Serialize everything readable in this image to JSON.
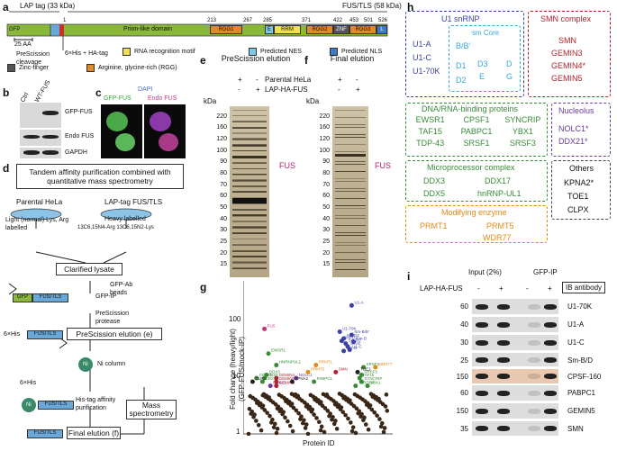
{
  "panel_a": {
    "label": "a",
    "lap_tag": "LAP tag (33 kDa)",
    "fus_tls": "FUS/TLS (58 kDa)",
    "gfp": "GFP",
    "prion": "Prion-like domain",
    "rgg1": "RGG1",
    "rrm": "RRM",
    "rgg2": "RGG2",
    "znf": "ZNF",
    "rgg3": "RGG3",
    "e": "E",
    "l": "L",
    "pos": [
      "1",
      "213",
      "267",
      "285",
      "371",
      "422",
      "453",
      "501",
      "526"
    ],
    "scale": "25 AA",
    "cleavage": "PreScission\ncleavage",
    "his": "6×His + HA-tag",
    "legend": [
      "RNA recognition motif",
      "Predicted NES",
      "Predicted NLS",
      "Zinc-finger",
      "Arginine, glycine-rich (RGG)"
    ]
  },
  "panel_b": {
    "label": "b",
    "cols": [
      "Ctrl",
      "WT-FUS"
    ],
    "rows": [
      "GFP-FUS",
      "Endo FUS",
      "GAPDH"
    ]
  },
  "panel_c": {
    "label": "c",
    "dapi": "DAPI",
    "gfp": "GFP-FUS",
    "endo": "Endo FUS"
  },
  "panel_d": {
    "label": "d",
    "title": "Tandem affinity purification combined with quantitative mass spectrometry",
    "parental": "Parental HeLa",
    "lap": "LAP-tag FUS/TLS",
    "light": "Light (normal) Lys, Arg labelled",
    "heavy": "Heavy labelled",
    "isotopes": "13C6,15N4-Arg 13C6,15N2-Lys",
    "lysate": "Clarified lysate",
    "gfpab": "GFP-Ab beads",
    "gfpip": "GFP-IP",
    "prescission": "PreScission protease",
    "elution_e": "PreScission elution (e)",
    "nicol": "Ni column",
    "his6": "6×His",
    "histag": "His-tag affinity purification",
    "mass": "Mass spectrometry",
    "final": "Final elution (f)",
    "fus_tls": "FUS/TLS",
    "gfp": "GFP",
    "ni": "Ni"
  },
  "panel_e": {
    "label": "e",
    "title": "PreScission elution",
    "parental": "Parental HeLa",
    "lap": "LAP-HA-FUS",
    "kda": "kDa",
    "marks": [
      "220",
      "160",
      "120",
      "100",
      "90",
      "80",
      "70",
      "60",
      "50",
      "40",
      "30",
      "25",
      "20",
      "15"
    ],
    "fus": "FUS",
    "signs": [
      "+",
      "-",
      "-",
      "+"
    ]
  },
  "panel_f": {
    "label": "f",
    "title": "Final elution",
    "kda": "kDa",
    "marks": [
      "220",
      "160",
      "120",
      "100",
      "90",
      "80",
      "70",
      "60",
      "50",
      "40",
      "30",
      "25",
      "20",
      "15"
    ],
    "fus": "FUS",
    "signs": [
      "+",
      "-",
      "-",
      "+"
    ]
  },
  "panel_g": {
    "label": "g",
    "ylabel": "Fold change (heavy/light)\n(GFP-FUS/mock-IP)",
    "xlabel": "Protein ID",
    "ticks": [
      "100",
      "10",
      "1"
    ]
  },
  "chart_data": {
    "type": "scatter",
    "xlabel": "Protein ID",
    "ylabel": "Fold change (heavy/light) (GFP-FUS/mock-IP)",
    "yscale": "log",
    "ylim": [
      1,
      300
    ],
    "labeled_points": [
      {
        "name": "U1-A",
        "x": 52,
        "y": 120
      },
      {
        "name": "U1-70K",
        "x": 46,
        "y": 45
      },
      {
        "name": "Sm-B/B'",
        "x": 52,
        "y": 40
      },
      {
        "name": "Sm-D3",
        "x": 48,
        "y": 35
      },
      {
        "name": "Sm-D1",
        "x": 47,
        "y": 32
      },
      {
        "name": "Sm-D2",
        "x": 49,
        "y": 29
      },
      {
        "name": "Sm-E",
        "x": 50,
        "y": 26
      },
      {
        "name": "Sm-G",
        "x": 48,
        "y": 22
      },
      {
        "name": "U1-C",
        "x": 51,
        "y": 23
      },
      {
        "name": "Sm-D",
        "x": 53,
        "y": 31
      },
      {
        "name": "FUS",
        "x": 8,
        "y": 50
      },
      {
        "name": "EWSR1",
        "x": 10,
        "y": 20
      },
      {
        "name": "HNRNPUL1",
        "x": 14,
        "y": 13
      },
      {
        "name": "CPSF1",
        "x": 4,
        "y": 8
      },
      {
        "name": "DDX5",
        "x": 8,
        "y": 8
      },
      {
        "name": "DDX3",
        "x": 9,
        "y": 9
      },
      {
        "name": "CLPX",
        "x": 2,
        "y": 7
      },
      {
        "name": "DDX17",
        "x": 7,
        "y": 7
      },
      {
        "name": "DDX21",
        "x": 11,
        "y": 6
      },
      {
        "name": "GEMIN4",
        "x": 14,
        "y": 8
      },
      {
        "name": "GEMIN5",
        "x": 14,
        "y": 7
      },
      {
        "name": "GEMIN3",
        "x": 14,
        "y": 6
      },
      {
        "name": "NOLC1",
        "x": 24,
        "y": 8
      },
      {
        "name": "KPNA2",
        "x": 22,
        "y": 7
      },
      {
        "name": "PRMT1",
        "x": 34,
        "y": 13
      },
      {
        "name": "PRMT5",
        "x": 30,
        "y": 10
      },
      {
        "name": "PABPC1",
        "x": 33,
        "y": 7
      },
      {
        "name": "SMN",
        "x": 44,
        "y": 10
      },
      {
        "name": "SRSF1",
        "x": 58,
        "y": 12
      },
      {
        "name": "TOE1",
        "x": 55,
        "y": 10
      },
      {
        "name": "SRSF3",
        "x": 57,
        "y": 9
      },
      {
        "name": "TAF15",
        "x": 56,
        "y": 8
      },
      {
        "name": "SYNCRIP",
        "x": 57,
        "y": 7
      },
      {
        "name": "YBX1",
        "x": 60,
        "y": 6
      },
      {
        "name": "TARDBP",
        "x": 54,
        "y": 6
      },
      {
        "name": "WDR77",
        "x": 64,
        "y": 12
      }
    ]
  },
  "panel_h": {
    "label": "h",
    "u1": "U1 snRNP",
    "u1_items": [
      "U1-A",
      "U1-C",
      "U1-70K"
    ],
    "smcore": "sm Core",
    "sm_items": [
      "B/B'",
      "D1",
      "D3",
      "D",
      "D2",
      "E",
      "G"
    ],
    "smn": "SMN complex",
    "smn_items": [
      "SMN",
      "GEMIN3",
      "GEMIN4*",
      "GEMIN5"
    ],
    "dna": "DNA/RNA-binding proteins",
    "dna_items": [
      "EWSR1",
      "CPSF1",
      "SYNCRIP",
      "TAF15",
      "PABPC1",
      "YBX1",
      "TDP-43",
      "SRSF1",
      "SRSF3"
    ],
    "nucleolus": "Nucleolus",
    "nuc_items": [
      "NOLC1*",
      "DDX21*"
    ],
    "micro": "Microprocessor complex",
    "micro_items": [
      "DDX3",
      "DDX17",
      "DDX5",
      "hnRNP-UL1"
    ],
    "others": "Others",
    "others_items": [
      "KPNA2*",
      "TOE1",
      "CLPX"
    ],
    "mod": "Modifying enzyme",
    "mod_items": [
      "PRMT1",
      "PRMT5",
      "WDR77"
    ]
  },
  "panel_i": {
    "label": "i",
    "input": "Input (2%)",
    "gfpip": "GFP-IP",
    "lap": "LAP-HA-FUS",
    "signs": [
      "-",
      "+",
      "-",
      "+"
    ],
    "ib": "IB antibody",
    "rows": [
      {
        "mw": "60",
        "name": "U1-70K"
      },
      {
        "mw": "40",
        "name": "U1-A"
      },
      {
        "mw": "30",
        "name": "U1-C"
      },
      {
        "mw": "25",
        "name": "Sm-B/D"
      },
      {
        "mw": "150",
        "name": "CPSF-160"
      },
      {
        "mw": "60",
        "name": "PABPC1"
      },
      {
        "mw": "150",
        "name": "GEMIN5"
      },
      {
        "mw": "35",
        "name": "SMN"
      }
    ]
  },
  "colors": {
    "blue": "#3b3fa8",
    "red": "#b0232e",
    "green": "#3a8a3a",
    "purple": "#6a3aa0",
    "orange": "#e08a1a",
    "gray": "#444",
    "cyan": "#38a8d8"
  }
}
